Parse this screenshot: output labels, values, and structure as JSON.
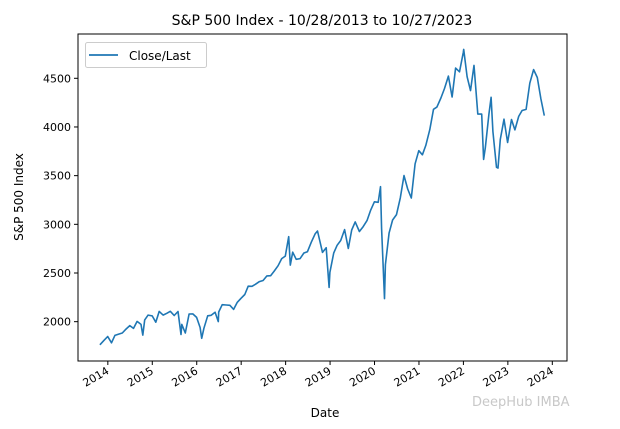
{
  "chart_data": {
    "type": "line",
    "title": "S&P 500 Index - 10/28/2013 to 10/27/2023",
    "xlabel": "Date",
    "ylabel": "S&P 500 Index",
    "xlim": [
      "2013-05-01",
      "2024-05-01"
    ],
    "ylim": [
      1596,
      4955
    ],
    "x_ticks": [
      "2014",
      "2015",
      "2016",
      "2017",
      "2018",
      "2019",
      "2020",
      "2021",
      "2022",
      "2023",
      "2024"
    ],
    "y_ticks": [
      2000,
      2500,
      3000,
      3500,
      4000,
      4500
    ],
    "grid": false,
    "legend": {
      "position": "top-left",
      "entries": [
        "Close/Last"
      ]
    },
    "series": [
      {
        "name": "Close/Last",
        "color": "#1f77b4",
        "points": [
          [
            "2013-10-28",
            1762
          ],
          [
            "2013-11-29",
            1806
          ],
          [
            "2013-12-31",
            1848
          ],
          [
            "2014-01-31",
            1783
          ],
          [
            "2014-02-28",
            1859
          ],
          [
            "2014-03-31",
            1872
          ],
          [
            "2014-04-30",
            1884
          ],
          [
            "2014-05-30",
            1924
          ],
          [
            "2014-06-30",
            1960
          ],
          [
            "2014-07-31",
            1931
          ],
          [
            "2014-08-29",
            2003
          ],
          [
            "2014-09-30",
            1972
          ],
          [
            "2014-10-15",
            1862
          ],
          [
            "2014-10-31",
            2018
          ],
          [
            "2014-11-28",
            2068
          ],
          [
            "2014-12-31",
            2059
          ],
          [
            "2015-01-30",
            1995
          ],
          [
            "2015-02-27",
            2105
          ],
          [
            "2015-03-31",
            2068
          ],
          [
            "2015-04-30",
            2086
          ],
          [
            "2015-05-29",
            2107
          ],
          [
            "2015-06-30",
            2063
          ],
          [
            "2015-07-31",
            2104
          ],
          [
            "2015-08-25",
            1868
          ],
          [
            "2015-08-31",
            1972
          ],
          [
            "2015-09-29",
            1884
          ],
          [
            "2015-10-30",
            2079
          ],
          [
            "2015-11-30",
            2080
          ],
          [
            "2015-12-31",
            2044
          ],
          [
            "2016-01-29",
            1940
          ],
          [
            "2016-02-11",
            1829
          ],
          [
            "2016-02-29",
            1932
          ],
          [
            "2016-03-31",
            2060
          ],
          [
            "2016-04-29",
            2065
          ],
          [
            "2016-05-31",
            2097
          ],
          [
            "2016-06-27",
            2001
          ],
          [
            "2016-06-30",
            2099
          ],
          [
            "2016-07-29",
            2174
          ],
          [
            "2016-08-31",
            2171
          ],
          [
            "2016-09-30",
            2168
          ],
          [
            "2016-10-31",
            2126
          ],
          [
            "2016-11-30",
            2199
          ],
          [
            "2016-12-30",
            2239
          ],
          [
            "2017-01-31",
            2279
          ],
          [
            "2017-02-28",
            2364
          ],
          [
            "2017-03-31",
            2363
          ],
          [
            "2017-04-28",
            2384
          ],
          [
            "2017-05-31",
            2412
          ],
          [
            "2017-06-30",
            2423
          ],
          [
            "2017-07-31",
            2470
          ],
          [
            "2017-08-31",
            2472
          ],
          [
            "2017-09-29",
            2519
          ],
          [
            "2017-10-31",
            2575
          ],
          [
            "2017-11-30",
            2648
          ],
          [
            "2017-12-29",
            2674
          ],
          [
            "2018-01-26",
            2873
          ],
          [
            "2018-02-08",
            2581
          ],
          [
            "2018-02-28",
            2714
          ],
          [
            "2018-03-29",
            2641
          ],
          [
            "2018-04-30",
            2648
          ],
          [
            "2018-05-31",
            2705
          ],
          [
            "2018-06-29",
            2718
          ],
          [
            "2018-07-31",
            2816
          ],
          [
            "2018-08-31",
            2902
          ],
          [
            "2018-09-20",
            2931
          ],
          [
            "2018-10-31",
            2712
          ],
          [
            "2018-11-30",
            2760
          ],
          [
            "2018-12-24",
            2351
          ],
          [
            "2018-12-31",
            2507
          ],
          [
            "2019-01-31",
            2704
          ],
          [
            "2019-02-28",
            2784
          ],
          [
            "2019-03-29",
            2834
          ],
          [
            "2019-04-30",
            2946
          ],
          [
            "2019-05-31",
            2752
          ],
          [
            "2019-06-28",
            2942
          ],
          [
            "2019-07-26",
            3025
          ],
          [
            "2019-08-30",
            2926
          ],
          [
            "2019-09-30",
            2977
          ],
          [
            "2019-10-31",
            3038
          ],
          [
            "2019-11-29",
            3141
          ],
          [
            "2019-12-31",
            3231
          ],
          [
            "2020-01-31",
            3226
          ],
          [
            "2020-02-19",
            3386
          ],
          [
            "2020-02-28",
            2954
          ],
          [
            "2020-03-23",
            2237
          ],
          [
            "2020-03-31",
            2585
          ],
          [
            "2020-04-30",
            2912
          ],
          [
            "2020-05-29",
            3044
          ],
          [
            "2020-06-30",
            3100
          ],
          [
            "2020-07-31",
            3271
          ],
          [
            "2020-08-31",
            3500
          ],
          [
            "2020-09-30",
            3363
          ],
          [
            "2020-10-30",
            3270
          ],
          [
            "2020-11-30",
            3622
          ],
          [
            "2020-12-31",
            3756
          ],
          [
            "2021-01-29",
            3714
          ],
          [
            "2021-02-26",
            3811
          ],
          [
            "2021-03-31",
            3973
          ],
          [
            "2021-04-30",
            4181
          ],
          [
            "2021-05-28",
            4204
          ],
          [
            "2021-06-30",
            4298
          ],
          [
            "2021-07-30",
            4395
          ],
          [
            "2021-08-31",
            4523
          ],
          [
            "2021-09-30",
            4308
          ],
          [
            "2021-10-29",
            4605
          ],
          [
            "2021-11-30",
            4567
          ],
          [
            "2021-12-31",
            4766
          ],
          [
            "2022-01-03",
            4797
          ],
          [
            "2022-01-31",
            4516
          ],
          [
            "2022-02-28",
            4374
          ],
          [
            "2022-03-29",
            4632
          ],
          [
            "2022-04-29",
            4132
          ],
          [
            "2022-05-31",
            4132
          ],
          [
            "2022-06-16",
            3667
          ],
          [
            "2022-06-30",
            3785
          ],
          [
            "2022-07-29",
            4130
          ],
          [
            "2022-08-16",
            4305
          ],
          [
            "2022-08-31",
            3955
          ],
          [
            "2022-09-30",
            3586
          ],
          [
            "2022-10-12",
            3577
          ],
          [
            "2022-10-31",
            3872
          ],
          [
            "2022-11-30",
            4080
          ],
          [
            "2022-12-30",
            3840
          ],
          [
            "2023-01-31",
            4077
          ],
          [
            "2023-02-28",
            3970
          ],
          [
            "2023-03-31",
            4109
          ],
          [
            "2023-04-28",
            4169
          ],
          [
            "2023-05-31",
            4180
          ],
          [
            "2023-06-30",
            4450
          ],
          [
            "2023-07-31",
            4589
          ],
          [
            "2023-08-31",
            4508
          ],
          [
            "2023-09-29",
            4288
          ],
          [
            "2023-10-27",
            4117
          ]
        ]
      }
    ]
  },
  "watermark": "DeepHub IMBA"
}
